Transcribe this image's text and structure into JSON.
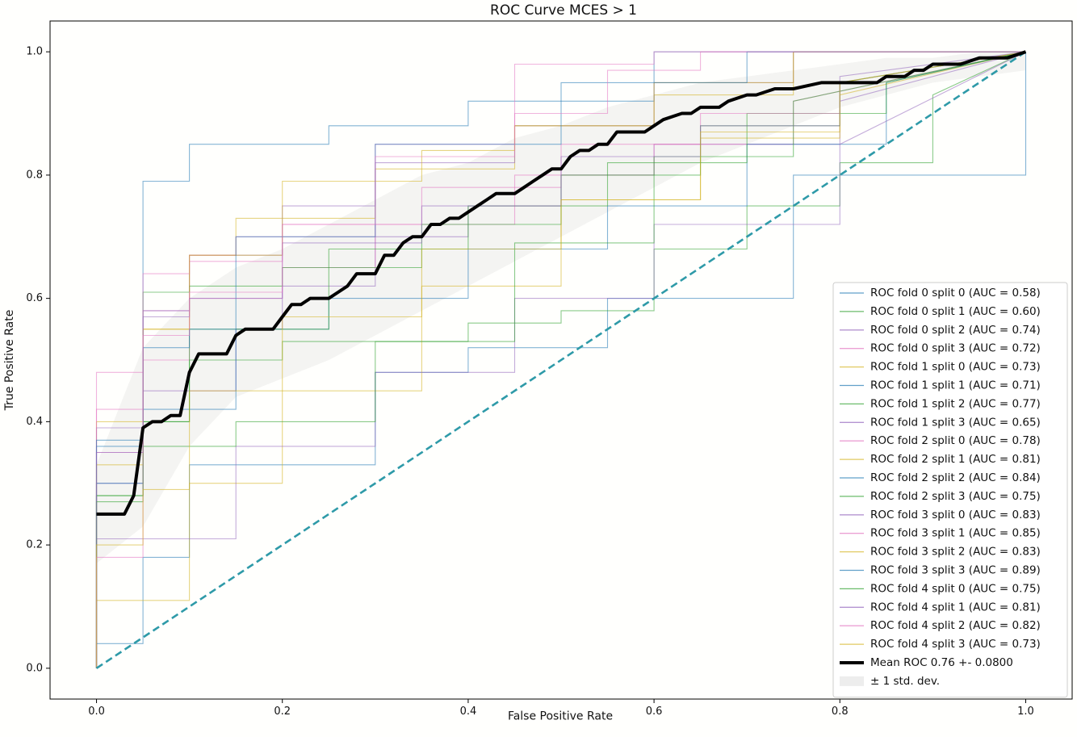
{
  "chart_data": {
    "type": "line",
    "title": "ROC Curve MCES > 1",
    "xlabel": "False Positive Rate",
    "ylabel": "True Positive Rate",
    "xlim": [
      -0.05,
      1.05
    ],
    "ylim": [
      -0.05,
      1.05
    ],
    "xticks": [
      "0.0",
      "0.2",
      "0.4",
      "0.6",
      "0.8",
      "1.0"
    ],
    "yticks": [
      "0.0",
      "0.2",
      "0.4",
      "0.6",
      "0.8",
      "1.0"
    ],
    "legend_position": "lower-right",
    "grid": false,
    "fold_colors": [
      "#1f77b4",
      "#2ca02c",
      "#9467bd",
      "#e377c2",
      "#d4b320"
    ],
    "mean_color": "#000000",
    "band_color": "#cccccc",
    "chance_color": "#2e9aa8",
    "series": [
      {
        "name": "ROC fold 0 split 0 (AUC = 0.58)",
        "x": [
          0,
          0,
          0.05,
          0.05,
          0.1,
          0.1,
          0.3,
          0.3,
          0.4,
          0.4,
          0.55,
          0.55,
          0.75,
          0.75,
          1.0,
          1.0
        ],
        "y": [
          0,
          0.04,
          0.04,
          0.18,
          0.18,
          0.33,
          0.33,
          0.48,
          0.48,
          0.52,
          0.52,
          0.6,
          0.6,
          0.8,
          0.8,
          1.0
        ]
      },
      {
        "name": "ROC fold 0 split 1 (AUC = 0.60)",
        "x": [
          0,
          0,
          0.05,
          0.05,
          0.1,
          0.1,
          0.2,
          0.2,
          0.4,
          0.4,
          0.5,
          0.5,
          0.6,
          0.6,
          0.7,
          0.7,
          0.8,
          0.8,
          0.9,
          0.9,
          1.0
        ],
        "y": [
          0,
          0.28,
          0.28,
          0.4,
          0.4,
          0.5,
          0.5,
          0.53,
          0.53,
          0.56,
          0.56,
          0.58,
          0.58,
          0.68,
          0.68,
          0.75,
          0.75,
          0.82,
          0.82,
          0.93,
          1.0
        ]
      },
      {
        "name": "ROC fold 0 split 2 (AUC = 0.74)",
        "x": [
          0,
          0,
          0.05,
          0.05,
          0.15,
          0.15,
          0.2,
          0.2,
          0.3,
          0.3,
          0.4,
          0.4,
          0.5,
          0.5,
          0.6,
          0.6,
          0.8,
          0.8,
          1.0
        ],
        "y": [
          0,
          0.3,
          0.3,
          0.45,
          0.45,
          0.55,
          0.55,
          0.62,
          0.62,
          0.7,
          0.7,
          0.75,
          0.75,
          0.8,
          0.8,
          0.85,
          0.85,
          0.92,
          1.0
        ]
      },
      {
        "name": "ROC fold 0 split 3 (AUC = 0.72)",
        "x": [
          0,
          0,
          0.05,
          0.05,
          0.1,
          0.1,
          0.2,
          0.2,
          0.3,
          0.3,
          0.45,
          0.45,
          0.6,
          0.6,
          0.75,
          0.75,
          1.0
        ],
        "y": [
          0,
          0.35,
          0.35,
          0.5,
          0.5,
          0.6,
          0.6,
          0.65,
          0.65,
          0.72,
          0.72,
          0.8,
          0.8,
          0.85,
          0.85,
          0.92,
          1.0
        ]
      },
      {
        "name": "ROC fold 1 split 0 (AUC = 0.73)",
        "x": [
          0,
          0,
          0.1,
          0.1,
          0.2,
          0.2,
          0.35,
          0.35,
          0.5,
          0.5,
          0.65,
          0.65,
          0.8,
          0.8,
          1.0
        ],
        "y": [
          0,
          0.11,
          0.11,
          0.3,
          0.3,
          0.45,
          0.45,
          0.62,
          0.62,
          0.76,
          0.76,
          0.86,
          0.86,
          0.93,
          1.0
        ]
      },
      {
        "name": "ROC fold 1 split 1 (AUC = 0.71)",
        "x": [
          0,
          0,
          0.05,
          0.05,
          0.15,
          0.15,
          0.25,
          0.25,
          0.4,
          0.4,
          0.55,
          0.55,
          0.7,
          0.7,
          0.85,
          0.85,
          1.0
        ],
        "y": [
          0,
          0.3,
          0.3,
          0.42,
          0.42,
          0.55,
          0.55,
          0.6,
          0.6,
          0.68,
          0.68,
          0.75,
          0.75,
          0.85,
          0.85,
          0.95,
          1.0
        ]
      },
      {
        "name": "ROC fold 1 split 2 (AUC = 0.77)",
        "x": [
          0,
          0,
          0.05,
          0.05,
          0.1,
          0.1,
          0.25,
          0.25,
          0.4,
          0.4,
          0.55,
          0.55,
          0.7,
          0.7,
          0.85,
          0.85,
          1.0
        ],
        "y": [
          0,
          0.28,
          0.28,
          0.4,
          0.4,
          0.55,
          0.55,
          0.68,
          0.68,
          0.75,
          0.75,
          0.82,
          0.82,
          0.9,
          0.9,
          0.95,
          1.0
        ]
      },
      {
        "name": "ROC fold 1 split 3 (AUC = 0.65)",
        "x": [
          0,
          0,
          0.05,
          0.05,
          0.15,
          0.15,
          0.3,
          0.3,
          0.45,
          0.45,
          0.6,
          0.6,
          0.8,
          0.8,
          1.0
        ],
        "y": [
          0,
          0.21,
          0.21,
          0.21,
          0.21,
          0.36,
          0.36,
          0.48,
          0.48,
          0.6,
          0.6,
          0.72,
          0.72,
          0.85,
          1.0
        ]
      },
      {
        "name": "ROC fold 2 split 0 (AUC = 0.78)",
        "x": [
          0,
          0,
          0.05,
          0.05,
          0.1,
          0.1,
          0.2,
          0.2,
          0.35,
          0.35,
          0.5,
          0.5,
          0.65,
          0.65,
          0.8,
          0.8,
          1.0
        ],
        "y": [
          0,
          0.48,
          0.48,
          0.58,
          0.58,
          0.66,
          0.66,
          0.72,
          0.72,
          0.78,
          0.78,
          0.85,
          0.85,
          0.9,
          0.9,
          0.95,
          1.0
        ]
      },
      {
        "name": "ROC fold 2 split 1 (AUC = 0.81)",
        "x": [
          0,
          0,
          0.05,
          0.05,
          0.1,
          0.1,
          0.15,
          0.15,
          0.3,
          0.3,
          0.45,
          0.45,
          0.6,
          0.6,
          0.75,
          0.75,
          1.0
        ],
        "y": [
          0,
          0.4,
          0.4,
          0.55,
          0.55,
          0.67,
          0.67,
          0.73,
          0.73,
          0.81,
          0.81,
          0.88,
          0.88,
          0.93,
          0.93,
          1.0,
          1.0
        ]
      },
      {
        "name": "ROC fold 2 split 2 (AUC = 0.84)",
        "x": [
          0,
          0,
          0.05,
          0.05,
          0.1,
          0.1,
          0.2,
          0.2,
          0.25,
          0.25,
          0.4,
          0.4,
          0.6,
          0.6,
          1.0
        ],
        "y": [
          0,
          0.36,
          0.36,
          0.79,
          0.79,
          0.85,
          0.85,
          0.85,
          0.85,
          0.88,
          0.88,
          0.92,
          0.92,
          1.0,
          1.0
        ]
      },
      {
        "name": "ROC fold 2 split 3 (AUC = 0.75)",
        "x": [
          0,
          0,
          0.05,
          0.05,
          0.1,
          0.1,
          0.2,
          0.2,
          0.35,
          0.35,
          0.5,
          0.5,
          0.65,
          0.65,
          0.8,
          0.8,
          1.0
        ],
        "y": [
          0,
          0.28,
          0.28,
          0.61,
          0.61,
          0.62,
          0.62,
          0.65,
          0.65,
          0.72,
          0.72,
          0.8,
          0.8,
          0.88,
          0.88,
          0.95,
          1.0
        ]
      },
      {
        "name": "ROC fold 3 split 0 (AUC = 0.83)",
        "x": [
          0,
          0,
          0.05,
          0.05,
          0.1,
          0.1,
          0.2,
          0.2,
          0.3,
          0.3,
          0.45,
          0.45,
          0.6,
          0.6,
          0.75,
          0.75,
          1.0
        ],
        "y": [
          0,
          0.39,
          0.39,
          0.58,
          0.58,
          0.67,
          0.67,
          0.75,
          0.75,
          0.82,
          0.82,
          0.88,
          0.88,
          0.95,
          0.95,
          1.0,
          1.0
        ]
      },
      {
        "name": "ROC fold 3 split 1 (AUC = 0.85)",
        "x": [
          0,
          0,
          0.05,
          0.05,
          0.1,
          0.1,
          0.15,
          0.15,
          0.3,
          0.3,
          0.45,
          0.45,
          0.6,
          0.6,
          1.0
        ],
        "y": [
          0,
          0.42,
          0.42,
          0.64,
          0.64,
          0.67,
          0.67,
          0.7,
          0.7,
          0.85,
          0.85,
          0.98,
          0.98,
          1.0,
          1.0
        ]
      },
      {
        "name": "ROC fold 3 split 2 (AUC = 0.83)",
        "x": [
          0,
          0,
          0.05,
          0.05,
          0.1,
          0.1,
          0.2,
          0.2,
          0.35,
          0.35,
          0.45,
          0.45,
          0.6,
          0.6,
          0.75,
          0.75,
          1.0
        ],
        "y": [
          0,
          0.33,
          0.33,
          0.55,
          0.55,
          0.67,
          0.67,
          0.79,
          0.79,
          0.84,
          0.84,
          0.88,
          0.88,
          0.95,
          0.95,
          1.0,
          1.0
        ]
      },
      {
        "name": "ROC fold 3 split 3 (AUC = 0.89)",
        "x": [
          0,
          0,
          0.05,
          0.05,
          0.1,
          0.1,
          0.15,
          0.15,
          0.3,
          0.3,
          0.5,
          0.5,
          0.7,
          0.7,
          1.0
        ],
        "y": [
          0,
          0.37,
          0.37,
          0.52,
          0.52,
          0.55,
          0.55,
          0.7,
          0.7,
          0.85,
          0.85,
          0.95,
          0.95,
          1.0,
          1.0
        ]
      },
      {
        "name": "ROC fold 4 split 0 (AUC = 0.75)",
        "x": [
          0,
          0,
          0.05,
          0.05,
          0.15,
          0.15,
          0.3,
          0.3,
          0.45,
          0.45,
          0.6,
          0.6,
          0.75,
          0.75,
          1.0
        ],
        "y": [
          0,
          0.27,
          0.27,
          0.36,
          0.36,
          0.4,
          0.4,
          0.53,
          0.53,
          0.69,
          0.69,
          0.83,
          0.83,
          0.92,
          1.0
        ]
      },
      {
        "name": "ROC fold 4 split 1 (AUC = 0.81)",
        "x": [
          0,
          0,
          0.05,
          0.05,
          0.1,
          0.1,
          0.2,
          0.2,
          0.35,
          0.35,
          0.5,
          0.5,
          0.65,
          0.65,
          0.8,
          0.8,
          1.0
        ],
        "y": [
          0,
          0.35,
          0.35,
          0.57,
          0.57,
          0.6,
          0.6,
          0.69,
          0.69,
          0.75,
          0.75,
          0.83,
          0.83,
          0.88,
          0.88,
          0.96,
          1.0
        ]
      },
      {
        "name": "ROC fold 4 split 2 (AUC = 0.82)",
        "x": [
          0,
          0,
          0.05,
          0.05,
          0.1,
          0.1,
          0.2,
          0.2,
          0.3,
          0.3,
          0.45,
          0.45,
          0.55,
          0.55,
          0.65,
          0.65,
          1.0
        ],
        "y": [
          0,
          0.18,
          0.18,
          0.54,
          0.54,
          0.61,
          0.61,
          0.72,
          0.72,
          0.83,
          0.83,
          0.9,
          0.9,
          0.97,
          0.97,
          1.0,
          1.0
        ]
      },
      {
        "name": "ROC fold 4 split 3 (AUC = 0.73)",
        "x": [
          0,
          0,
          0.05,
          0.05,
          0.1,
          0.1,
          0.2,
          0.2,
          0.35,
          0.35,
          0.5,
          0.5,
          0.65,
          0.65,
          0.8,
          0.8,
          1.0
        ],
        "y": [
          0,
          0.2,
          0.2,
          0.29,
          0.29,
          0.45,
          0.45,
          0.57,
          0.57,
          0.68,
          0.68,
          0.76,
          0.76,
          0.87,
          0.87,
          0.95,
          1.0
        ]
      }
    ],
    "mean": {
      "name": "Mean ROC 0.76 +- 0.0800",
      "x": [
        0,
        0.03,
        0.04,
        0.05,
        0.06,
        0.07,
        0.08,
        0.09,
        0.1,
        0.11,
        0.12,
        0.14,
        0.15,
        0.16,
        0.17,
        0.19,
        0.2,
        0.21,
        0.22,
        0.23,
        0.25,
        0.26,
        0.27,
        0.28,
        0.3,
        0.31,
        0.32,
        0.33,
        0.34,
        0.35,
        0.36,
        0.37,
        0.38,
        0.39,
        0.4,
        0.41,
        0.42,
        0.43,
        0.45,
        0.46,
        0.47,
        0.48,
        0.49,
        0.5,
        0.51,
        0.52,
        0.53,
        0.54,
        0.55,
        0.56,
        0.57,
        0.59,
        0.6,
        0.61,
        0.63,
        0.64,
        0.65,
        0.67,
        0.68,
        0.7,
        0.71,
        0.73,
        0.74,
        0.75,
        0.78,
        0.8,
        0.81,
        0.84,
        0.85,
        0.87,
        0.88,
        0.89,
        0.9,
        0.91,
        0.93,
        0.95,
        0.96,
        0.98,
        1.0
      ],
      "y": [
        0.25,
        0.25,
        0.28,
        0.39,
        0.4,
        0.4,
        0.41,
        0.41,
        0.48,
        0.51,
        0.51,
        0.51,
        0.54,
        0.55,
        0.55,
        0.55,
        0.57,
        0.59,
        0.59,
        0.6,
        0.6,
        0.61,
        0.62,
        0.64,
        0.64,
        0.67,
        0.67,
        0.69,
        0.7,
        0.7,
        0.72,
        0.72,
        0.73,
        0.73,
        0.74,
        0.75,
        0.76,
        0.77,
        0.77,
        0.78,
        0.79,
        0.8,
        0.81,
        0.81,
        0.83,
        0.84,
        0.84,
        0.85,
        0.85,
        0.87,
        0.87,
        0.87,
        0.88,
        0.89,
        0.9,
        0.9,
        0.91,
        0.91,
        0.92,
        0.93,
        0.93,
        0.94,
        0.94,
        0.94,
        0.95,
        0.95,
        0.95,
        0.95,
        0.96,
        0.96,
        0.97,
        0.97,
        0.98,
        0.98,
        0.98,
        0.99,
        0.99,
        0.99,
        1.0
      ]
    },
    "band": {
      "name": "± 1 std. dev.",
      "x": [
        0,
        0.05,
        0.1,
        0.15,
        0.2,
        0.25,
        0.3,
        0.35,
        0.4,
        0.45,
        0.5,
        0.55,
        0.6,
        0.65,
        0.7,
        0.75,
        0.8,
        0.85,
        0.9,
        0.95,
        1.0
      ],
      "upper": [
        0.33,
        0.52,
        0.6,
        0.65,
        0.68,
        0.72,
        0.76,
        0.8,
        0.82,
        0.86,
        0.88,
        0.91,
        0.93,
        0.95,
        0.96,
        0.97,
        0.98,
        0.99,
        0.99,
        1.0,
        1.0
      ],
      "lower": [
        0.17,
        0.23,
        0.36,
        0.44,
        0.47,
        0.5,
        0.54,
        0.58,
        0.62,
        0.66,
        0.7,
        0.74,
        0.78,
        0.82,
        0.85,
        0.88,
        0.91,
        0.93,
        0.95,
        0.96,
        0.97
      ]
    },
    "chance": {
      "x": [
        0,
        1
      ],
      "y": [
        0,
        1
      ]
    }
  }
}
